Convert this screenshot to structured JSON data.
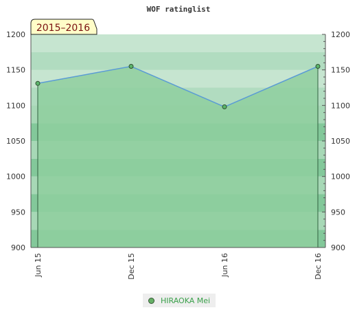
{
  "chart_data": {
    "type": "area",
    "title": "WOF ratinglist",
    "period_label": "2015–2016",
    "categories": [
      "Jun 15",
      "Dec 15",
      "Jun 16",
      "Dec 16"
    ],
    "series": [
      {
        "name": "HIRAOKA Mei",
        "values": [
          1131,
          1155,
          1098,
          1155
        ]
      }
    ],
    "ylim": [
      900,
      1200
    ],
    "yticks": [
      900,
      950,
      1000,
      1050,
      1100,
      1150,
      1200
    ],
    "y_axis_both_sides": true,
    "legend_position": "bottom-center",
    "colors": {
      "area_fill": "#8fcf9f",
      "line": "#5a9bd5",
      "marker_fill": "#5bb56b",
      "marker_stroke": "#2f4f2f",
      "band_light": "#c8e6d2",
      "band_mid": "#a2d6b2",
      "band_dark": "#7cc595",
      "period_box": "#fffdc8"
    }
  }
}
